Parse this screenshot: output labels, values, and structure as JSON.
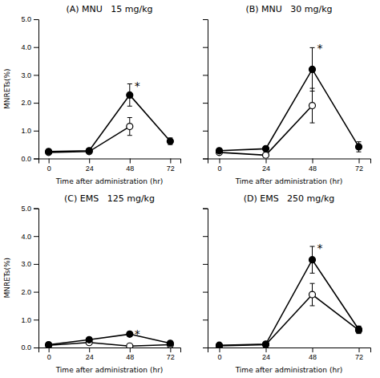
{
  "chart_data": [
    {
      "type": "line",
      "title": "(A) MNU   15 mg/kg",
      "xlabel": "Time after administration (hr)",
      "ylabel": "MNRETs(%)",
      "x": [
        0,
        24,
        48,
        72
      ],
      "series": [
        {
          "color": "#000000",
          "marker": "open-circle",
          "values": [
            0.22,
            0.25,
            1.15,
            null
          ],
          "yerr": [
            0.04,
            0.04,
            0.32,
            null
          ]
        },
        {
          "color": "#000000",
          "marker": "circle",
          "values": [
            0.25,
            0.28,
            2.28,
            0.62
          ],
          "yerr": [
            0.05,
            0.05,
            0.4,
            0.12
          ]
        }
      ],
      "annotations": [
        {
          "text": "*",
          "x": 48,
          "y": 2.72
        }
      ],
      "xlim": [
        -6,
        78
      ],
      "xticks": [
        0,
        24,
        48,
        72
      ],
      "ylim": [
        0,
        5.0
      ],
      "yticks": [
        {
          "value": 0,
          "label": "0.0"
        },
        {
          "value": 1,
          "label": "1.0"
        },
        {
          "value": 2,
          "label": "2.0"
        },
        {
          "value": 3,
          "label": "3.0"
        },
        {
          "value": 4,
          "label": "4.0"
        },
        {
          "value": 5,
          "label": "5.0"
        }
      ]
    },
    {
      "type": "line",
      "title": "(B) MNU   30 mg/kg",
      "xlabel": "Time after administration (hr)",
      "x": [
        0,
        24,
        48,
        72
      ],
      "series": [
        {
          "color": "#000000",
          "marker": "open-circle",
          "values": [
            0.22,
            0.12,
            1.9,
            null
          ],
          "yerr": [
            0.05,
            0.04,
            0.62,
            null
          ]
        },
        {
          "color": "#000000",
          "marker": "circle",
          "values": [
            0.28,
            0.35,
            3.2,
            0.42
          ],
          "yerr": [
            0.06,
            0.08,
            0.78,
            0.18
          ]
        }
      ],
      "annotations": [
        {
          "text": "*",
          "x": 48,
          "y": 4.05
        }
      ],
      "xlim": [
        -6,
        78
      ],
      "xticks": [
        0,
        24,
        48,
        72
      ],
      "ylim": [
        0,
        5.0
      ],
      "yticks": [
        {
          "value": 0,
          "label": "0.0"
        },
        {
          "value": 1,
          "label": "1.0"
        },
        {
          "value": 2,
          "label": "2.0"
        },
        {
          "value": 3,
          "label": "3.0"
        },
        {
          "value": 4,
          "label": "4.0"
        },
        {
          "value": 5,
          "label": "5.0"
        }
      ],
      "tick_labels": "x"
    },
    {
      "type": "line",
      "title": "(C) EMS   125 mg/kg",
      "xlabel": "Time after administration (hr)",
      "ylabel": "MNRETs(%)",
      "x": [
        0,
        24,
        48,
        72
      ],
      "series": [
        {
          "color": "#000000",
          "marker": "open-circle",
          "values": [
            0.08,
            0.18,
            0.05,
            0.1
          ],
          "yerr": [
            0.02,
            0.05,
            0.02,
            0.03
          ]
        },
        {
          "color": "#000000",
          "marker": "circle",
          "values": [
            0.1,
            0.28,
            0.48,
            0.15
          ],
          "yerr": [
            0.03,
            0.06,
            0.08,
            0.04
          ]
        }
      ],
      "annotations": [
        {
          "text": "*",
          "x": 48,
          "y": 0.58
        }
      ],
      "xlim": [
        -6,
        78
      ],
      "xticks": [
        0,
        24,
        48,
        72
      ],
      "ylim": [
        0,
        5.0
      ],
      "yticks": [
        {
          "value": 0,
          "label": "0.0"
        },
        {
          "value": 1,
          "label": "1.0"
        },
        {
          "value": 2,
          "label": "2.0"
        },
        {
          "value": 3,
          "label": "3.0"
        },
        {
          "value": 4,
          "label": "4.0"
        },
        {
          "value": 5,
          "label": "5.0"
        }
      ]
    },
    {
      "type": "line",
      "title": "(D) EMS   250 mg/kg",
      "xlabel": "Time after administration (hr)",
      "x": [
        0,
        24,
        48,
        72
      ],
      "series": [
        {
          "color": "#000000",
          "marker": "open-circle",
          "values": [
            0.06,
            0.1,
            1.9,
            0.62
          ],
          "yerr": [
            0.02,
            0.02,
            0.4,
            0.12
          ]
        },
        {
          "color": "#000000",
          "marker": "circle",
          "values": [
            0.08,
            0.12,
            3.15,
            0.65
          ],
          "yerr": [
            0.02,
            0.03,
            0.48,
            0.12
          ]
        }
      ],
      "annotations": [
        {
          "text": "*",
          "x": 48,
          "y": 3.68
        }
      ],
      "xlim": [
        -6,
        78
      ],
      "xticks": [
        0,
        24,
        48,
        72
      ],
      "ylim": [
        0,
        5.0
      ],
      "yticks": [
        {
          "value": 0,
          "label": "0.0"
        },
        {
          "value": 1,
          "label": "1.0"
        },
        {
          "value": 2,
          "label": "2.0"
        },
        {
          "value": 3,
          "label": "3.0"
        },
        {
          "value": 4,
          "label": "4.0"
        },
        {
          "value": 5,
          "label": "5.0"
        }
      ],
      "tick_labels": "x"
    }
  ]
}
